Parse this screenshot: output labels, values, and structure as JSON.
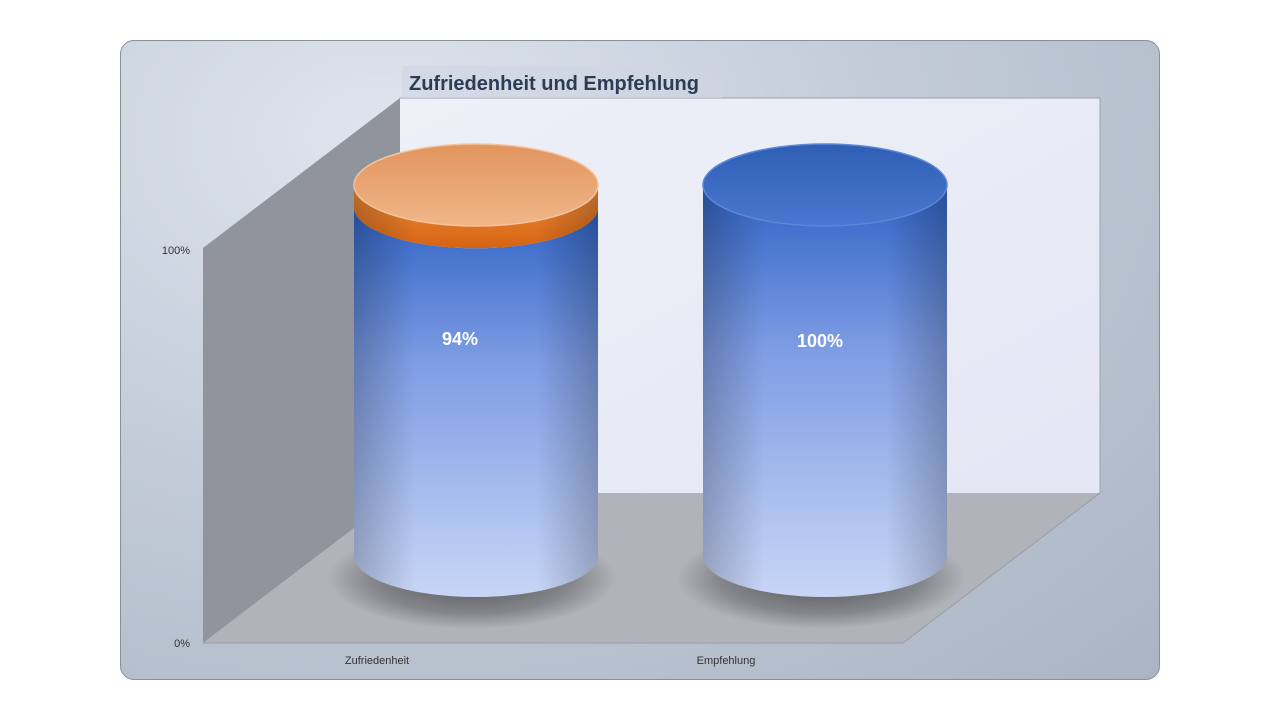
{
  "chart_data": {
    "type": "bar",
    "subtype": "3d-cylinder-stacked",
    "title": "Zufriedenheit und Empfehlung",
    "categories": [
      "Zufriedenheit",
      "Empfehlung"
    ],
    "series": [
      {
        "values": [
          94,
          100
        ],
        "color": "#4472c4"
      },
      {
        "values": [
          6,
          0
        ],
        "color": "#ed7d31"
      }
    ],
    "data_labels": [
      "94%",
      "100%"
    ],
    "y_ticks": [
      "0%",
      "100%"
    ],
    "ylim": [
      0,
      100
    ],
    "grid": false,
    "legend": "none"
  }
}
